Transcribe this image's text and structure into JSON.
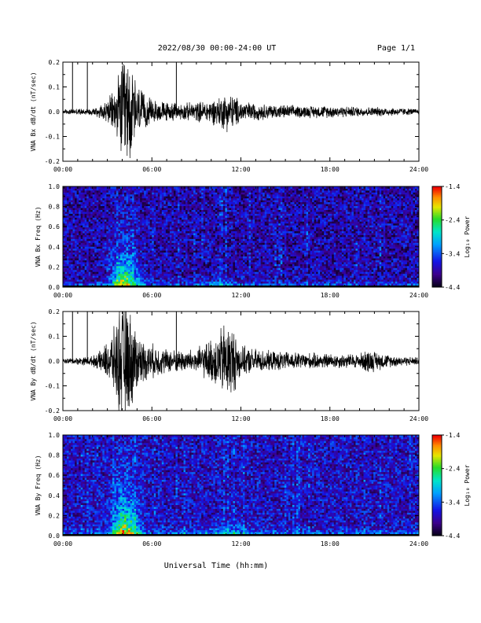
{
  "header": {
    "title": "2022/08/30  00:00-24:00 UT",
    "page": "Page 1/1"
  },
  "xlabel": "Universal Time (hh:mm)",
  "x_ticks": [
    "00:00",
    "06:00",
    "12:00",
    "18:00",
    "24:00"
  ],
  "colorbar_label": "Log₁₀ Power",
  "chart_data": [
    {
      "type": "line",
      "ylabel": "VNA Bx dB/dt (nT/sec)",
      "xlim": [
        0,
        24
      ],
      "ylim": [
        -0.2,
        0.2
      ],
      "y_ticks": [
        "-0.2",
        "-0.1",
        "0.0",
        "0.1",
        "0.2"
      ],
      "envelope": {
        "x": [
          0,
          1,
          2,
          2.5,
          3,
          3.5,
          3.8,
          4.0,
          4.3,
          4.6,
          5.0,
          5.5,
          6.0,
          7.0,
          8.0,
          9.0,
          10.0,
          10.5,
          11.0,
          11.5,
          12.0,
          13.0,
          14.0,
          16.0,
          18.0,
          20.0,
          22.0,
          24.0
        ],
        "amp": [
          0.01,
          0.012,
          0.015,
          0.03,
          0.05,
          0.09,
          0.16,
          0.22,
          0.22,
          0.2,
          0.12,
          0.07,
          0.05,
          0.04,
          0.035,
          0.04,
          0.05,
          0.06,
          0.08,
          0.07,
          0.045,
          0.035,
          0.03,
          0.025,
          0.025,
          0.02,
          0.018,
          0.012
        ]
      },
      "spikes": [
        {
          "x": 0.65,
          "y": 0.2
        },
        {
          "x": 1.65,
          "y": 0.2
        },
        {
          "x": 7.65,
          "y": 0.2
        }
      ]
    },
    {
      "type": "heatmap",
      "ylabel": "VNA Bx Freq (Hz)",
      "xlim": [
        0,
        24
      ],
      "ylim": [
        0,
        1.0
      ],
      "y_ticks": [
        "0.0",
        "0.2",
        "0.4",
        "0.6",
        "0.8",
        "1.0"
      ],
      "color_range": [
        -4.4,
        -1.4
      ],
      "colorbar_ticks": [
        "-1.4",
        "-2.4",
        "-3.4",
        "-4.4"
      ],
      "events": [
        {
          "t_center": 4.2,
          "t_width": 0.9,
          "f_decay": 0.25,
          "peak": -1.6
        },
        {
          "t_center": 10.8,
          "t_width": 1.2,
          "f_decay": 0.05,
          "peak": -3.0
        }
      ],
      "background": -3.9
    },
    {
      "type": "line",
      "ylabel": "VNA By dB/dt (nT/sec)",
      "xlim": [
        0,
        24
      ],
      "ylim": [
        -0.2,
        0.2
      ],
      "y_ticks": [
        "-0.2",
        "-0.1",
        "0.0",
        "0.1",
        "0.2"
      ],
      "envelope": {
        "x": [
          0,
          1,
          2,
          2.5,
          3,
          3.5,
          3.8,
          4.0,
          4.3,
          4.6,
          5.0,
          5.5,
          6.0,
          7.0,
          8.0,
          9.0,
          10.0,
          10.5,
          11.0,
          11.5,
          12.0,
          13.0,
          14.0,
          16.0,
          18.0,
          20.0,
          20.5,
          22.0,
          24.0
        ],
        "amp": [
          0.01,
          0.015,
          0.02,
          0.04,
          0.08,
          0.14,
          0.22,
          0.24,
          0.24,
          0.2,
          0.12,
          0.08,
          0.07,
          0.05,
          0.045,
          0.05,
          0.09,
          0.12,
          0.17,
          0.14,
          0.06,
          0.05,
          0.04,
          0.035,
          0.03,
          0.03,
          0.05,
          0.025,
          0.015
        ]
      },
      "spikes": [
        {
          "x": 0.65,
          "y": 0.2
        },
        {
          "x": 1.65,
          "y": 0.2
        },
        {
          "x": 7.65,
          "y": 0.2
        }
      ]
    },
    {
      "type": "heatmap",
      "ylabel": "VNA By Freq (Hz)",
      "xlim": [
        0,
        24
      ],
      "ylim": [
        0,
        1.0
      ],
      "y_ticks": [
        "0.0",
        "0.2",
        "0.4",
        "0.6",
        "0.8",
        "1.0"
      ],
      "color_range": [
        -4.4,
        -1.4
      ],
      "colorbar_ticks": [
        "-1.4",
        "-2.4",
        "-3.4",
        "-4.4"
      ],
      "events": [
        {
          "t_center": 4.2,
          "t_width": 0.9,
          "f_decay": 0.28,
          "peak": -1.5
        },
        {
          "t_center": 11.2,
          "t_width": 2.0,
          "f_decay": 0.06,
          "peak": -2.7
        }
      ],
      "background": -3.8
    }
  ]
}
